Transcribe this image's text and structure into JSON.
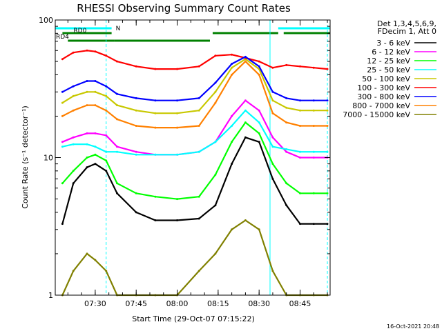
{
  "chart_data": {
    "type": "line",
    "title": "RHESSI Observing Summary Count Rates",
    "xlabel": "Start Time (29-Oct-07 07:15:22)",
    "ylabel": "Count Rate (s⁻¹ detector⁻¹)",
    "yscale": "log",
    "ylim": [
      1,
      100
    ],
    "xlim": [
      "07:15:22",
      "08:56:00"
    ],
    "x_ticks": [
      "07:30",
      "07:45",
      "08:00",
      "08:15",
      "08:30",
      "08:45"
    ],
    "y_ticks": [
      "1",
      "10",
      "100"
    ],
    "grid": false,
    "legend_position": "top-right",
    "legend_header": [
      "Det 1,3,4,5,6,9,",
      "FDecim 1, Att 0"
    ],
    "timestamp": "16-Oct-2021 20:48",
    "annotations": [
      {
        "label": "N",
        "start": "07:15:22",
        "end": "07:36:00",
        "color": "#00ffff"
      },
      {
        "label": "RD0",
        "start": "07:18:00",
        "end": "07:36:00",
        "color": "#008000"
      },
      {
        "label": "RD4",
        "start": "07:20:00",
        "end": "07:37:00",
        "color": "#008000"
      },
      {
        "label": "",
        "start": "07:37:00",
        "end": "08:12:00",
        "color": "#008000"
      },
      {
        "label": "",
        "start": "08:13:00",
        "end": "08:37:00",
        "color": "#008000"
      },
      {
        "label": "",
        "start": "08:39:00",
        "end": "08:56:00",
        "color": "#008000"
      },
      {
        "label": "",
        "start": "08:37:00",
        "end": "08:56:00",
        "color": "#00ffff"
      }
    ],
    "boundaries": [
      {
        "time": "07:15:22",
        "style": "solid",
        "color": "#00ffff"
      },
      {
        "time": "07:34:00",
        "style": "dashed",
        "color": "#00ffff"
      },
      {
        "time": "08:34:00",
        "style": "solid",
        "color": "#00ffff"
      },
      {
        "time": "08:55:00",
        "style": "dashed",
        "color": "#00ffff"
      }
    ],
    "x": [
      "07:18",
      "07:22",
      "07:27",
      "07:30",
      "07:34",
      "07:38",
      "07:45",
      "07:52",
      "08:00",
      "08:08",
      "08:14",
      "08:20",
      "08:25",
      "08:30",
      "08:35",
      "08:40",
      "08:45",
      "08:50",
      "08:55"
    ],
    "series": [
      {
        "name": "3 - 6 keV",
        "color": "#000000",
        "values": [
          3.3,
          6.5,
          8.5,
          9.0,
          8.0,
          5.5,
          4.0,
          3.5,
          3.5,
          3.6,
          4.5,
          9.0,
          14.0,
          13.0,
          7.0,
          4.5,
          3.3,
          3.3,
          3.3
        ]
      },
      {
        "name": "6 - 12 keV",
        "color": "#ff00ff",
        "values": [
          13.0,
          14.0,
          15.0,
          15.0,
          14.5,
          12.0,
          11.0,
          10.5,
          10.5,
          11.0,
          13.0,
          20.0,
          26.0,
          22.0,
          14.0,
          11.0,
          10.0,
          10.0,
          10.0
        ]
      },
      {
        "name": "12 - 25 keV",
        "color": "#00ff00",
        "values": [
          6.5,
          8.0,
          10.0,
          10.5,
          9.5,
          6.5,
          5.5,
          5.2,
          5.0,
          5.2,
          7.5,
          13.0,
          18.0,
          15.0,
          9.0,
          6.5,
          5.5,
          5.5,
          5.5
        ]
      },
      {
        "name": "25 - 50 keV",
        "color": "#00ffff",
        "values": [
          12.0,
          12.5,
          12.5,
          12.0,
          11.0,
          11.0,
          10.5,
          10.5,
          10.5,
          11.0,
          13.0,
          17.0,
          22.0,
          18.0,
          12.0,
          11.5,
          11.0,
          11.0,
          11.0
        ]
      },
      {
        "name": "50 - 100 keV",
        "color": "#c8c800",
        "values": [
          25.0,
          28.0,
          30.0,
          30.0,
          28.0,
          24.0,
          22.0,
          21.0,
          21.0,
          22.0,
          30.0,
          45.0,
          52.0,
          44.0,
          26.0,
          23.0,
          22.0,
          22.0,
          22.0
        ]
      },
      {
        "name": "100 - 300 keV",
        "color": "#ff0000",
        "values": [
          52.0,
          58.0,
          60.0,
          59.0,
          55.0,
          50.0,
          46.0,
          44.0,
          44.0,
          46.0,
          55.0,
          56.0,
          53.0,
          50.0,
          45.0,
          47.0,
          46.0,
          45.0,
          44.0
        ]
      },
      {
        "name": "300 - 800 keV",
        "color": "#0000ff",
        "values": [
          30.0,
          33.0,
          36.0,
          36.0,
          33.0,
          29.0,
          27.0,
          26.0,
          26.0,
          27.0,
          35.0,
          48.0,
          54.0,
          46.0,
          30.0,
          27.0,
          26.0,
          26.0,
          26.0
        ]
      },
      {
        "name": "800 - 7000 keV",
        "color": "#ff8000",
        "values": [
          20.0,
          22.0,
          24.0,
          24.0,
          22.0,
          19.0,
          17.0,
          16.5,
          16.5,
          17.0,
          25.0,
          40.0,
          50.0,
          40.0,
          21.0,
          18.0,
          17.0,
          17.0,
          17.0
        ]
      },
      {
        "name": "7000 - 15000 keV",
        "color": "#808000",
        "values": [
          1.0,
          1.5,
          2.0,
          1.8,
          1.5,
          1.0,
          1.0,
          1.0,
          1.0,
          1.5,
          2.0,
          3.0,
          3.5,
          3.0,
          1.5,
          1.0,
          1.0,
          1.0,
          1.0
        ]
      }
    ]
  }
}
